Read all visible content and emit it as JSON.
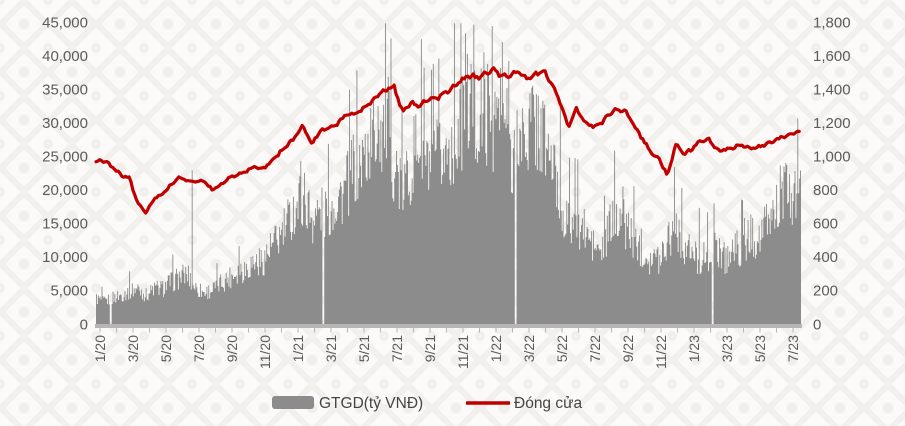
{
  "chart_data": {
    "type": "combo",
    "title": "",
    "x_axis": {
      "tick_labels": [
        "1/20",
        "3/20",
        "5/20",
        "7/20",
        "9/20",
        "11/20",
        "1/21",
        "3/21",
        "5/21",
        "7/21",
        "9/21",
        "11/21",
        "1/22",
        "3/22",
        "5/22",
        "7/22",
        "9/22",
        "11/22",
        "1/23",
        "3/23",
        "5/23",
        "7/23"
      ],
      "label_every_months": 2,
      "minor_tick_every_months": 1,
      "months_total": 42.5,
      "grid": false
    },
    "left_axis": {
      "min": 0,
      "max": 45000,
      "step": 5000,
      "tick_labels": [
        "0",
        "5,000",
        "10,000",
        "15,000",
        "20,000",
        "25,000",
        "30,000",
        "35,000",
        "40,000",
        "45,000"
      ]
    },
    "right_axis": {
      "min": 0,
      "max": 1800,
      "step": 200,
      "tick_labels": [
        "0",
        "200",
        "400",
        "600",
        "800",
        "1,000",
        "1,200",
        "1,400",
        "1,600",
        "1,800"
      ]
    },
    "series": [
      {
        "name": "GTGD(tỷ VNĐ)",
        "type": "bar",
        "axis": "left",
        "color": "#8C8C8C",
        "keyframes_semimonthly": [
          3800,
          3300,
          3900,
          4300,
          4900,
          5300,
          4300,
          5300,
          5300,
          6300,
          6900,
          7400,
          5400,
          4700,
          5100,
          6100,
          6900,
          7900,
          8300,
          9200,
          9300,
          11200,
          12600,
          14800,
          17200,
          19200,
          15800,
          16600,
          16800,
          18700,
          19800,
          23200,
          23800,
          26800,
          28800,
          30200,
          23600,
          19800,
          23800,
          27800,
          22800,
          24800,
          24800,
          27600,
          30200,
          33200,
          29800,
          31800,
          30400,
          32400,
          25800,
          27400,
          28600,
          30200,
          27600,
          24200,
          17600,
          15400,
          15600,
          13600,
          11600,
          10600,
          14600,
          17200,
          14600,
          12600,
          11200,
          9600,
          9800,
          13200,
          14800,
          11600,
          10200,
          9600,
          10600,
          11600,
          9800,
          11200,
          11600,
          13200,
          12800,
          14800,
          17200,
          19600,
          18800,
          19400
        ],
        "spikes": [
          {
            "m": 5.75,
            "v": 22900
          },
          {
            "m": 8.6,
            "v": 11600
          },
          {
            "m": 12.35,
            "v": 24300
          },
          {
            "m": 17.0,
            "v": 32500
          },
          {
            "m": 17.6,
            "v": 36800
          },
          {
            "m": 19.8,
            "v": 38200
          },
          {
            "m": 22.3,
            "v": 43300
          },
          {
            "m": 22.75,
            "v": 44600
          },
          {
            "m": 23.4,
            "v": 40500
          },
          {
            "m": 23.9,
            "v": 44400
          },
          {
            "m": 24.5,
            "v": 42000
          },
          {
            "m": 24.9,
            "v": 39200
          },
          {
            "m": 26.3,
            "v": 35200
          },
          {
            "m": 28.0,
            "v": 33500
          },
          {
            "m": 31.8,
            "v": 20500
          },
          {
            "m": 34.9,
            "v": 23400
          },
          {
            "m": 36.4,
            "v": 17300
          },
          {
            "m": 39.1,
            "v": 15800
          },
          {
            "m": 41.3,
            "v": 23600
          }
        ],
        "gaps_months": [
          0.85,
          13.7,
          25.3,
          37.2
        ]
      },
      {
        "name": "Đóng cửa",
        "type": "line",
        "axis": "right",
        "color": "#C00000",
        "keyframes_semimonthly": [
          966,
          975,
          932,
          888,
          875,
          725,
          663,
          745,
          772,
          827,
          874,
          856,
          847,
          852,
          800,
          825,
          868,
          890,
          903,
          938,
          925,
          958,
          1010,
          1064,
          1110,
          1182,
          1068,
          1150,
          1172,
          1186,
          1240,
          1248,
          1268,
          1312,
          1360,
          1400,
          1415,
          1262,
          1320,
          1300,
          1338,
          1345,
          1368,
          1405,
          1448,
          1482,
          1470,
          1492,
          1522,
          1472,
          1486,
          1502,
          1468,
          1486,
          1512,
          1432,
          1322,
          1178,
          1282,
          1205,
          1178,
          1196,
          1252,
          1282,
          1268,
          1178,
          1102,
          1022,
          982,
          882,
          1072,
          1012,
          1048,
          1092,
          1098,
          1032,
          1038,
          1055,
          1068,
          1046,
          1055,
          1070,
          1095,
          1118,
          1135,
          1152
        ]
      }
    ],
    "legend": {
      "position": "bottom"
    }
  },
  "colors": {
    "axis_label": "#5B5B5B",
    "axis_line": "#B6B6B6",
    "legend_text": "#454545",
    "background": "#FBFAF8",
    "background_pattern": "#F0EEEA"
  }
}
